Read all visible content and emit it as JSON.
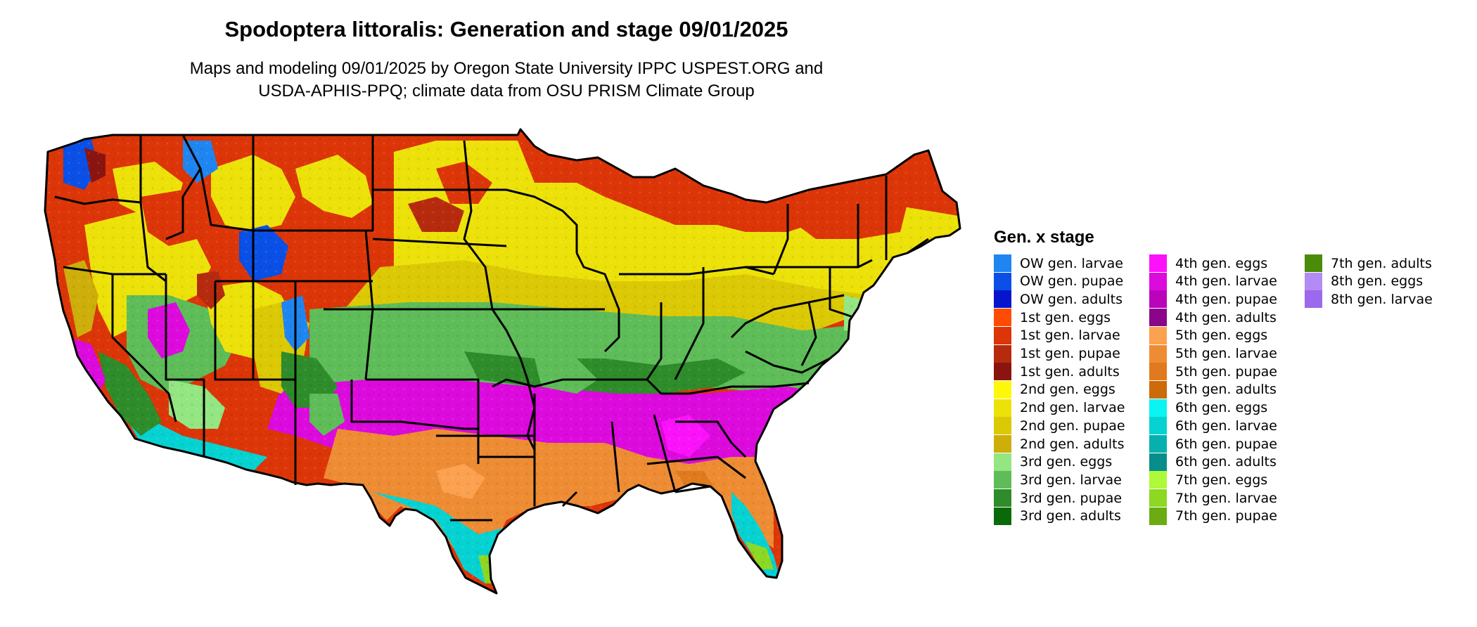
{
  "title": "Spodoptera littoralis: Generation and stage 09/01/2025",
  "subtitle_line1": "Maps and modeling 09/01/2025 by Oregon State University IPPC USPEST.ORG and",
  "subtitle_line2": "USDA-APHIS-PPQ; climate data from OSU PRISM Climate Group",
  "legend": {
    "title": "Gen. x stage",
    "items": [
      {
        "label": "OW gen. larvae",
        "color": "#1f85f0"
      },
      {
        "label": "OW gen. pupae",
        "color": "#0a4fe6"
      },
      {
        "label": "OW gen. adults",
        "color": "#0615cc"
      },
      {
        "label": "1st gen. eggs",
        "color": "#ff4c05"
      },
      {
        "label": "1st gen. larvae",
        "color": "#dc3508"
      },
      {
        "label": "1st gen. pupae",
        "color": "#b62a0e"
      },
      {
        "label": "1st gen. adults",
        "color": "#8a1510"
      },
      {
        "label": "2nd gen. eggs",
        "color": "#fdf80a"
      },
      {
        "label": "2nd gen. larvae",
        "color": "#ece20a"
      },
      {
        "label": "2nd gen. pupae",
        "color": "#dcc905"
      },
      {
        "label": "2nd gen. adults",
        "color": "#cdae0a"
      },
      {
        "label": "3rd gen. eggs",
        "color": "#93e682"
      },
      {
        "label": "3rd gen. larvae",
        "color": "#5ebd58"
      },
      {
        "label": "3rd gen. pupae",
        "color": "#2e8c2a"
      },
      {
        "label": "3rd gen. adults",
        "color": "#0a6a0a"
      },
      {
        "label": "4th gen. eggs",
        "color": "#fb12fb"
      },
      {
        "label": "4th gen. larvae",
        "color": "#dc0adc"
      },
      {
        "label": "4th gen. pupae",
        "color": "#b905b9"
      },
      {
        "label": "4th gen. adults",
        "color": "#8a058a"
      },
      {
        "label": "5th gen. eggs",
        "color": "#fba150"
      },
      {
        "label": "5th gen. larvae",
        "color": "#ee8c34"
      },
      {
        "label": "5th gen. pupae",
        "color": "#e07a1e"
      },
      {
        "label": "5th gen. adults",
        "color": "#cd6a0a"
      },
      {
        "label": "6th gen. eggs",
        "color": "#0af4f4"
      },
      {
        "label": "6th gen. larvae",
        "color": "#06d2d2"
      },
      {
        "label": "6th gen. pupae",
        "color": "#06b0ae"
      },
      {
        "label": "6th gen. adults",
        "color": "#078e8a"
      },
      {
        "label": "7th gen. eggs",
        "color": "#aef93a"
      },
      {
        "label": "7th gen. larvae",
        "color": "#8cd822"
      },
      {
        "label": "7th gen. pupae",
        "color": "#6aac12"
      },
      {
        "label": "7th gen. adults",
        "color": "#4a8c0a"
      },
      {
        "label": "8th gen. eggs",
        "color": "#b28cf4"
      },
      {
        "label": "8th gen. larvae",
        "color": "#9c68ec"
      }
    ]
  }
}
